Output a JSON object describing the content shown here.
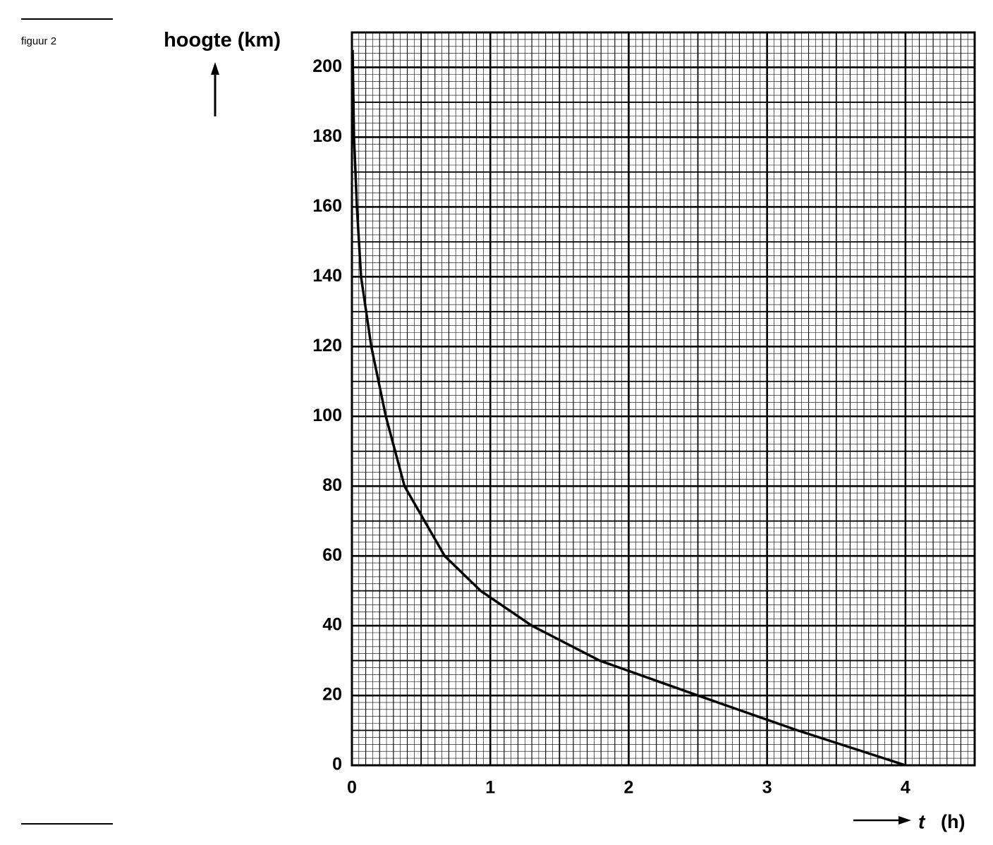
{
  "chart_data": {
    "type": "line",
    "caption": "figuur 2",
    "y_label": "hoogte (km)",
    "x_label_symbol": "t",
    "x_label_unit": "(h)",
    "x": [
      0.005,
      0.015,
      0.036,
      0.066,
      0.14,
      0.245,
      0.38,
      0.67,
      0.93,
      1.3,
      1.79,
      2.5,
      3.22,
      4.0
    ],
    "values": [
      205,
      180,
      160,
      140,
      120,
      100,
      80,
      60,
      50,
      40,
      30,
      20,
      10,
      0
    ],
    "color": "#000000",
    "xlim": [
      0,
      4.5
    ],
    "xticks": [
      0,
      1,
      2,
      3,
      4
    ],
    "ylim": [
      0,
      210
    ],
    "yticks": [
      0,
      20,
      40,
      60,
      80,
      100,
      120,
      140,
      160,
      180,
      200
    ],
    "grid": true
  }
}
